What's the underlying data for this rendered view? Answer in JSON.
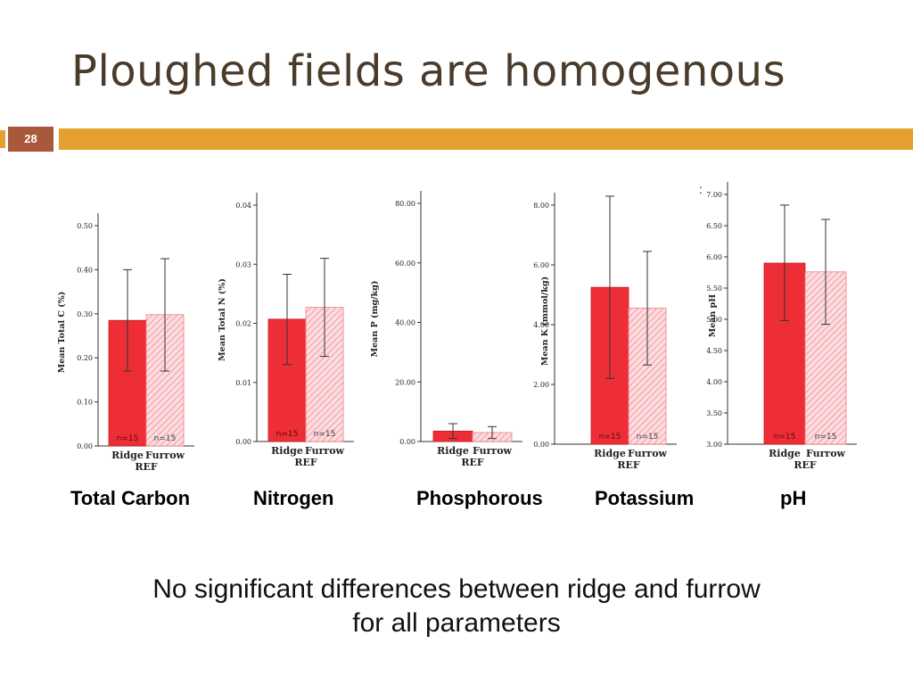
{
  "slide": {
    "title": "Ploughed fields are homogenous",
    "page_number": "28",
    "stray_mark": ":",
    "footer_line1": "No significant differences between ridge and furrow",
    "footer_line2": "for all parameters",
    "accent_color": "#e5a12f",
    "badge_color": "#a9583b"
  },
  "captions": [
    "Total Carbon",
    "Nitrogen",
    "Phosphorous",
    "Potassium",
    "pH"
  ],
  "colors": {
    "ridge": "#ee2e36",
    "furrow": "#f4a3a8"
  },
  "chart_data": [
    {
      "type": "bar",
      "ylabel": "Mean Total C (%)",
      "xlabel": "REF",
      "categories": [
        "Ridge",
        "Furrow"
      ],
      "values": [
        0.285,
        0.298
      ],
      "errors": [
        [
          0.17,
          0.4
        ],
        [
          0.17,
          0.425
        ]
      ],
      "counts": [
        "n=15",
        "n=15"
      ],
      "ylim": [
        0,
        0.5
      ],
      "yticks": [
        0.0,
        0.1,
        0.2,
        0.3,
        0.4,
        0.5
      ],
      "ytick_labels": [
        "0.00",
        "0.10",
        "0.20",
        "0.30",
        "0.40",
        "0.50"
      ]
    },
    {
      "type": "bar",
      "ylabel": "Mean Total N (%)",
      "xlabel": "REF",
      "categories": [
        "Ridge",
        "Furrow"
      ],
      "values": [
        0.0207,
        0.0227
      ],
      "errors": [
        [
          0.013,
          0.0283
        ],
        [
          0.0144,
          0.031
        ]
      ],
      "counts": [
        "n=15",
        "n=15"
      ],
      "ylim": [
        0,
        0.04
      ],
      "yticks": [
        0.0,
        0.01,
        0.02,
        0.03,
        0.04
      ],
      "ytick_labels": [
        "0.00",
        "0.01",
        "0.02",
        "0.03",
        "0.04"
      ]
    },
    {
      "type": "bar",
      "ylabel": "Mean P (mg/kg)",
      "xlabel": "REF",
      "categories": [
        "Ridge",
        "Furrow"
      ],
      "values": [
        3.5,
        3.0
      ],
      "errors": [
        [
          1.0,
          6.0
        ],
        [
          1.0,
          5.0
        ]
      ],
      "counts": [
        "",
        ""
      ],
      "ylim": [
        0,
        80
      ],
      "yticks": [
        0,
        20,
        40,
        60,
        80
      ],
      "ytick_labels": [
        "0.00",
        "20.00",
        "40.00",
        "60.00",
        "80.00"
      ]
    },
    {
      "type": "bar",
      "ylabel": "Mean K (mmol/kg)",
      "xlabel": "REF",
      "categories": [
        "Ridge",
        "Furrow"
      ],
      "values": [
        5.25,
        4.55
      ],
      "errors": [
        [
          2.2,
          8.3
        ],
        [
          2.65,
          6.45
        ]
      ],
      "counts": [
        "n=15",
        "n=15"
      ],
      "ylim": [
        0,
        8
      ],
      "yticks": [
        0,
        2,
        4,
        6,
        8
      ],
      "ytick_labels": [
        "0.00",
        "2.00",
        "4.00",
        "6.00",
        "8.00"
      ]
    },
    {
      "type": "bar",
      "ylabel": "Mean pH",
      "xlabel": "REF",
      "categories": [
        "Ridge",
        "Furrow"
      ],
      "values": [
        5.9,
        5.76
      ],
      "errors": [
        [
          4.98,
          6.83
        ],
        [
          4.92,
          6.6
        ]
      ],
      "counts": [
        "n=15",
        "n=15"
      ],
      "ylim": [
        3.0,
        7.0
      ],
      "yticks": [
        3.0,
        3.5,
        4.0,
        4.5,
        5.0,
        5.5,
        6.0,
        6.5,
        7.0
      ],
      "ytick_labels": [
        "3.00",
        "3.50",
        "4.00",
        "4.50",
        "5.00",
        "5.50",
        "6.00",
        "6.50",
        "7.00"
      ]
    }
  ]
}
